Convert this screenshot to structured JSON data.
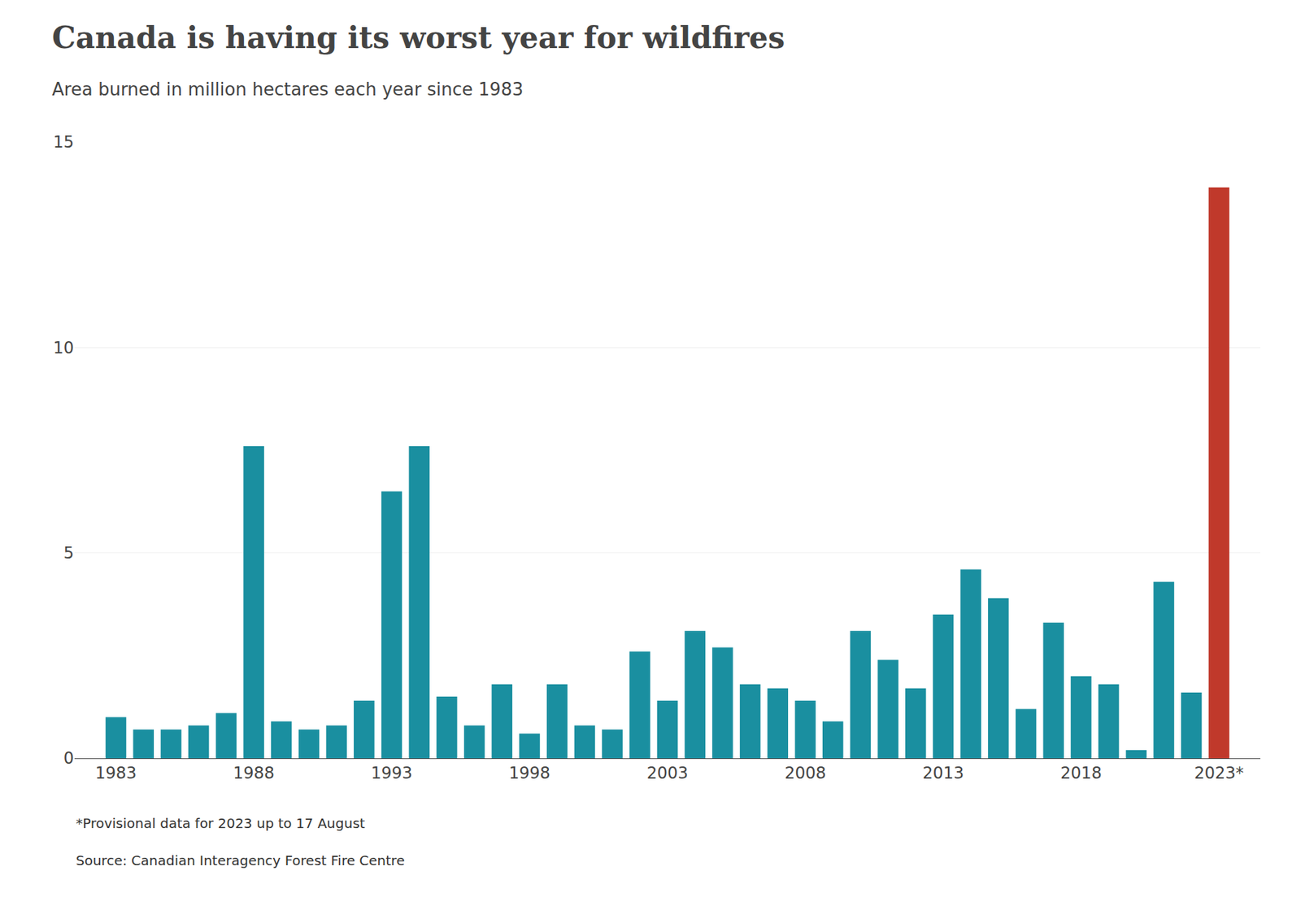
{
  "chart_data": {
    "type": "bar",
    "title": "Canada is having its worst year for wildfires",
    "subtitle": "Area burned in million hectares each year since 1983",
    "annotations": [
      "*Provisional data for 2023 up to 17 August",
      "Source: Canadian Interagency Forest Fire Centre"
    ],
    "x": [
      1983,
      1984,
      1985,
      1986,
      1987,
      1988,
      1989,
      1990,
      1991,
      1992,
      1993,
      1994,
      1995,
      1996,
      1997,
      1998,
      1999,
      2000,
      2001,
      2002,
      2003,
      2004,
      2005,
      2006,
      2007,
      2008,
      2009,
      2010,
      2011,
      2012,
      2013,
      2014,
      2015,
      2016,
      2017,
      2018,
      2019,
      2020,
      2021,
      2022,
      2023
    ],
    "values": [
      1.0,
      0.7,
      0.7,
      0.8,
      1.1,
      7.6,
      0.9,
      0.7,
      0.8,
      1.4,
      6.5,
      7.6,
      1.5,
      0.8,
      1.8,
      0.6,
      1.8,
      0.8,
      0.7,
      2.6,
      1.4,
      3.1,
      2.7,
      1.8,
      1.7,
      1.4,
      0.9,
      3.1,
      2.4,
      1.7,
      3.5,
      4.6,
      3.9,
      1.2,
      3.3,
      2.0,
      1.8,
      0.2,
      4.3,
      1.6,
      13.9
    ],
    "colors": [
      "#1a8fa0",
      "#1a8fa0",
      "#1a8fa0",
      "#1a8fa0",
      "#1a8fa0",
      "#1a8fa0",
      "#1a8fa0",
      "#1a8fa0",
      "#1a8fa0",
      "#1a8fa0",
      "#1a8fa0",
      "#1a8fa0",
      "#1a8fa0",
      "#1a8fa0",
      "#1a8fa0",
      "#1a8fa0",
      "#1a8fa0",
      "#1a8fa0",
      "#1a8fa0",
      "#1a8fa0",
      "#1a8fa0",
      "#1a8fa0",
      "#1a8fa0",
      "#1a8fa0",
      "#1a8fa0",
      "#1a8fa0",
      "#1a8fa0",
      "#1a8fa0",
      "#1a8fa0",
      "#1a8fa0",
      "#1a8fa0",
      "#1a8fa0",
      "#1a8fa0",
      "#1a8fa0",
      "#1a8fa0",
      "#1a8fa0",
      "#1a8fa0",
      "#1a8fa0",
      "#1a8fa0",
      "#1a8fa0",
      "#c0392b"
    ],
    "xlim": [
      1981.5,
      2024.5
    ],
    "xticks": [
      1983,
      1988,
      1993,
      1998,
      2003,
      2008,
      2013,
      2018,
      {
        "value": 2023,
        "label": "2023*"
      }
    ],
    "ylim": [
      0,
      15
    ],
    "yticks": [
      0,
      5,
      10,
      15
    ],
    "grid": true
  }
}
